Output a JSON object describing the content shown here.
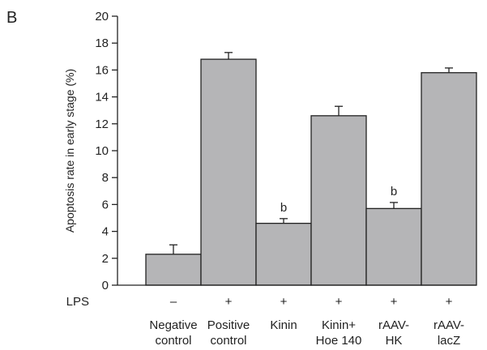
{
  "panel_label": "B",
  "chart_data": {
    "type": "bar",
    "title": "",
    "xlabel": "",
    "ylabel": "Apoptosis rate in early stage (%)",
    "ylim": [
      0,
      20
    ],
    "yticks": [
      0,
      2,
      4,
      6,
      8,
      10,
      12,
      14,
      16,
      18,
      20
    ],
    "lps_label": "LPS",
    "categories": [
      {
        "line1": "Negative",
        "line2": "control",
        "lps": "–"
      },
      {
        "line1": "Positive",
        "line2": "control",
        "lps": "+"
      },
      {
        "line1": "Kinin",
        "line2": "",
        "lps": "+"
      },
      {
        "line1": "Kinin+",
        "line2": "Hoe 140",
        "lps": "+"
      },
      {
        "line1": "rAAV-",
        "line2": "HK",
        "lps": "+"
      },
      {
        "line1": "rAAV-",
        "line2": "lacZ",
        "lps": "+"
      }
    ],
    "values": [
      2.3,
      16.8,
      4.6,
      12.6,
      5.7,
      15.8
    ],
    "errors": [
      0.7,
      0.5,
      0.35,
      0.7,
      0.45,
      0.35
    ],
    "annotations": [
      "",
      "",
      "b",
      "",
      "b",
      ""
    ],
    "grid": false,
    "legend": "none",
    "bar_color": "#b5b5b7"
  }
}
